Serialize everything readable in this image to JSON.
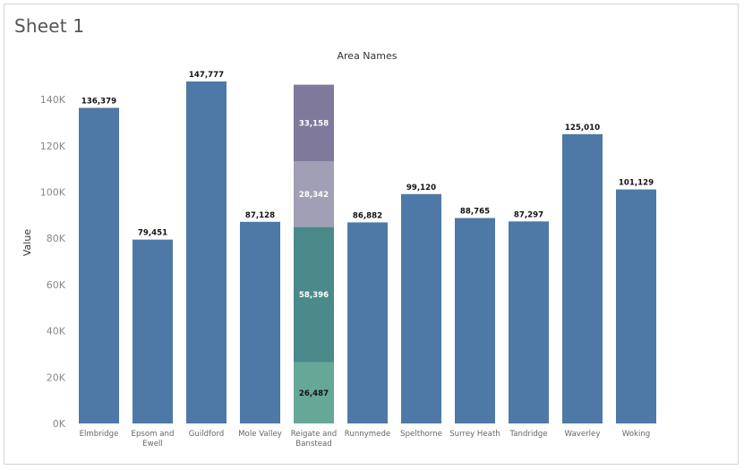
{
  "sheet": {
    "title": "Sheet 1"
  },
  "chart_data": {
    "type": "bar",
    "title": "Area Names",
    "xlabel": "",
    "ylabel": "Value",
    "ylim": [
      0,
      147777
    ],
    "yticks": [
      {
        "value": 0,
        "label": "0K"
      },
      {
        "value": 20000,
        "label": "20K"
      },
      {
        "value": 40000,
        "label": "40K"
      },
      {
        "value": 60000,
        "label": "60K"
      },
      {
        "value": 80000,
        "label": "80K"
      },
      {
        "value": 100000,
        "label": "100K"
      },
      {
        "value": 120000,
        "label": "120K"
      },
      {
        "value": 140000,
        "label": "140K"
      }
    ],
    "grid": false,
    "bars": [
      {
        "category": [
          "Elmbridge"
        ],
        "value": 136379,
        "label": "136,379"
      },
      {
        "category": [
          "Epsom and",
          "Ewell"
        ],
        "value": 79451,
        "label": "79,451"
      },
      {
        "category": [
          "Guildford"
        ],
        "value": 147777,
        "label": "147,777"
      },
      {
        "category": [
          "Mole Valley"
        ],
        "value": 87128,
        "label": "87,128"
      },
      {
        "category": [
          "Reigate and",
          "Banstead"
        ],
        "stacked": true,
        "segments": [
          {
            "value": 26487,
            "label": "26,487",
            "color": "#66a898"
          },
          {
            "value": 58396,
            "label": "58,396",
            "color": "#4b8a8a"
          },
          {
            "value": 28342,
            "label": "28,342",
            "color": "#a19fb5"
          },
          {
            "value": 33158,
            "label": "33,158",
            "color": "#7f7a9c"
          }
        ]
      },
      {
        "category": [
          "Runnymede"
        ],
        "value": 86882,
        "label": "86,882"
      },
      {
        "category": [
          "Spelthorne"
        ],
        "value": 99120,
        "label": "99,120"
      },
      {
        "category": [
          "Surrey Heath"
        ],
        "value": 88765,
        "label": "88,765"
      },
      {
        "category": [
          "Tandridge"
        ],
        "value": 87297,
        "label": "87,297"
      },
      {
        "category": [
          "Waverley"
        ],
        "value": 125010,
        "label": "125,010"
      },
      {
        "category": [
          "Woking"
        ],
        "value": 101129,
        "label": "101,129"
      }
    ],
    "colors": {
      "bar": "#4e79a7",
      "segment_dark_label_index": 0
    }
  }
}
